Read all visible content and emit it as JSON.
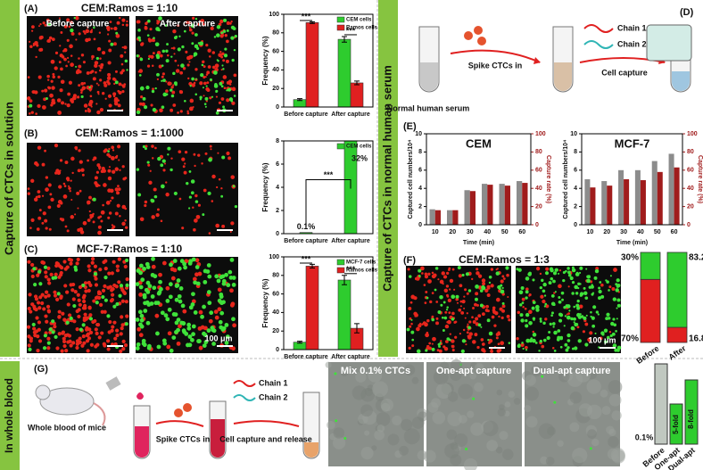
{
  "figure": {
    "side_labels": [
      "Capture of CTCs in solution",
      "Capture of CTCs in normal human serum",
      "In whole blood"
    ],
    "panel_labels": [
      "(A)",
      "(B)",
      "(C)",
      "(D)",
      "(E)",
      "(F)",
      "(G)"
    ],
    "panel_titles": {
      "A": "CEM:Ramos = 1:10",
      "B": "CEM:Ramos = 1:1000",
      "C": "MCF-7:Ramos = 1:10",
      "F": "CEM:Ramos = 1:3"
    },
    "image_captions": [
      "Before capture",
      "After capture"
    ],
    "scale_labels": [
      "100 μm",
      "100 μm"
    ],
    "diagram_d": {
      "tube_label": "Normal human serum",
      "step1": "Spike CTCs in",
      "chain1": "Chain 1",
      "chain2": "Chain 2",
      "step2": "Cell capture"
    },
    "diagram_g": {
      "tube_label": "Whole blood of mice",
      "step1": "Spike CTCs in",
      "chain1": "Chain 1",
      "chain2": "Chain 2",
      "step2": "Cell capture and release",
      "image_titles": [
        "Mix 0.1% CTCs",
        "One-apt capture",
        "Dual-apt capture"
      ],
      "bar_categories": [
        "Before",
        "One-apt",
        "Dual-apt"
      ],
      "bar_labels": [
        "0.1%",
        "5-fold",
        "8-fold"
      ]
    }
  },
  "chart_data": [
    {
      "type": "bar",
      "categories": [
        "Before capture",
        "After capture"
      ],
      "ylabel": "Frequency (%)",
      "ylim": [
        0,
        100
      ],
      "yticks": [
        0,
        20,
        40,
        60,
        80,
        100
      ],
      "series": [
        {
          "name": "CEM cells",
          "color": "#2ecc2e",
          "values": [
            8,
            73
          ],
          "errors": [
            1,
            3
          ]
        },
        {
          "name": "Ramos cells",
          "color": "#e02020",
          "values": [
            91,
            26
          ],
          "errors": [
            1,
            2
          ]
        }
      ],
      "annotations": [
        "***",
        "***"
      ]
    },
    {
      "type": "bar",
      "categories": [
        "Before capture",
        "After capture"
      ],
      "ylabel": "Frequency (%)",
      "ylim": [
        0,
        8
      ],
      "yticks": [
        0,
        2,
        4,
        6,
        8
      ],
      "series": [
        {
          "name": "CEM cells",
          "color": "#2ecc2e",
          "values": [
            0.1,
            32
          ],
          "value_labels": [
            "0.1%",
            "32%"
          ]
        }
      ],
      "annotations": [
        "***"
      ]
    },
    {
      "type": "bar",
      "categories": [
        "Before capture",
        "After capture"
      ],
      "ylabel": "Frequency (%)",
      "ylim": [
        0,
        100
      ],
      "yticks": [
        0,
        20,
        40,
        60,
        80,
        100
      ],
      "series": [
        {
          "name": "MCF-7 cells",
          "color": "#2ecc2e",
          "values": [
            8,
            75
          ],
          "errors": [
            1,
            5
          ]
        },
        {
          "name": "Ramos cells",
          "color": "#e02020",
          "values": [
            90,
            23
          ],
          "errors": [
            2,
            5
          ]
        }
      ],
      "annotations": [
        "***",
        "***"
      ]
    },
    {
      "type": "bar_dual",
      "title": "CEM",
      "categories": [
        "10",
        "20",
        "30",
        "40",
        "50",
        "60"
      ],
      "xlabel": "Time (min)",
      "ylabel": "Captured cell numbers/10⁴",
      "y2label": "Capture rate (%)",
      "ylim": [
        0,
        10
      ],
      "yticks": [
        0,
        2,
        4,
        6,
        8,
        10
      ],
      "y2lim": [
        0,
        100
      ],
      "y2ticks": [
        0,
        20,
        40,
        60,
        80,
        100
      ],
      "series": [
        {
          "color": "#8c8c8c",
          "values": [
            1.7,
            1.6,
            3.8,
            4.5,
            4.5,
            4.8
          ]
        },
        {
          "color": "#a01c1c",
          "axis": "y2",
          "values": [
            16,
            16,
            37,
            44,
            43,
            46
          ]
        }
      ]
    },
    {
      "type": "bar_dual",
      "title": "MCF-7",
      "categories": [
        "10",
        "20",
        "30",
        "40",
        "50",
        "60"
      ],
      "xlabel": "Time (min)",
      "ylabel": "Captured cell numbers/10⁴",
      "y2label": "Capture rate (%)",
      "ylim": [
        0,
        10
      ],
      "yticks": [
        0,
        2,
        4,
        6,
        8,
        10
      ],
      "y2lim": [
        0,
        100
      ],
      "y2ticks": [
        0,
        20,
        40,
        60,
        80,
        100
      ],
      "series": [
        {
          "color": "#8c8c8c",
          "values": [
            5,
            4.8,
            6,
            6,
            7,
            7.8
          ]
        },
        {
          "color": "#a01c1c",
          "axis": "y2",
          "values": [
            41,
            43,
            50,
            49,
            58,
            63
          ]
        }
      ]
    },
    {
      "type": "stacked_bar",
      "categories": [
        "Before",
        "After"
      ],
      "series": [
        {
          "color": "#e02020",
          "values": [
            70,
            16.8
          ],
          "value_labels": [
            "70%",
            "16.8%"
          ]
        },
        {
          "color": "#2ecc2e",
          "values": [
            30,
            83.2
          ],
          "value_labels": [
            "30%",
            "83.2%"
          ]
        }
      ]
    }
  ]
}
